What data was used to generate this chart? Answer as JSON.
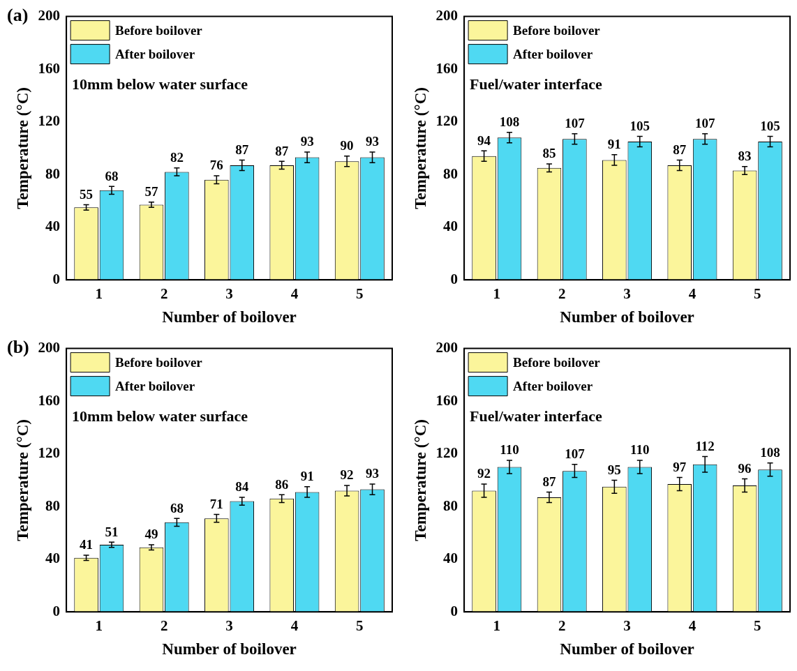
{
  "chart_data": [
    {
      "type": "bar",
      "title": "(a)",
      "xlabel": "Number of boilover",
      "ylabel": "Temperature (°C)",
      "annotations": [
        "10mm below water surface"
      ],
      "categories": [
        "1",
        "2",
        "3",
        "4",
        "5"
      ],
      "series": [
        {
          "name": "Before boilover",
          "color": "#fbf59b",
          "values": [
            55,
            57,
            76,
            87,
            90
          ],
          "errors": [
            2,
            2,
            3,
            3,
            4
          ]
        },
        {
          "name": "After boilover",
          "color": "#4fd9f2",
          "values": [
            68,
            82,
            87,
            93,
            93
          ],
          "errors": [
            3,
            3,
            4,
            4,
            4
          ]
        }
      ],
      "ylim": [
        0,
        200
      ],
      "yticks": [
        0,
        40,
        80,
        120,
        160,
        200
      ],
      "grid": false,
      "legend": "top left",
      "data_labels": true
    },
    {
      "type": "bar",
      "xlabel": "Number of boilover",
      "ylabel": "Temperature (°C)",
      "annotations": [
        "Fuel/water interface"
      ],
      "categories": [
        "1",
        "2",
        "3",
        "4",
        "5"
      ],
      "series": [
        {
          "name": "Before boilover",
          "color": "#fbf59b",
          "values": [
            94,
            85,
            91,
            87,
            83
          ],
          "errors": [
            4,
            3,
            4,
            4,
            3
          ]
        },
        {
          "name": "After boilover",
          "color": "#4fd9f2",
          "values": [
            108,
            107,
            105,
            107,
            105
          ],
          "errors": [
            4,
            4,
            4,
            4,
            4
          ]
        }
      ],
      "ylim": [
        0,
        200
      ],
      "yticks": [
        0,
        40,
        80,
        120,
        160,
        200
      ],
      "grid": false,
      "legend": "top left",
      "data_labels": true
    },
    {
      "type": "bar",
      "title": "(b)",
      "xlabel": "Number of boilover",
      "ylabel": "Temperature (°C)",
      "annotations": [
        "10mm below water surface"
      ],
      "categories": [
        "1",
        "2",
        "3",
        "4",
        "5"
      ],
      "series": [
        {
          "name": "Before boilover",
          "color": "#fbf59b",
          "values": [
            41,
            49,
            71,
            86,
            92
          ],
          "errors": [
            2,
            2,
            3,
            3,
            4
          ]
        },
        {
          "name": "After boilover",
          "color": "#4fd9f2",
          "values": [
            51,
            68,
            84,
            91,
            93
          ],
          "errors": [
            2,
            3,
            3,
            4,
            4
          ]
        }
      ],
      "ylim": [
        0,
        200
      ],
      "yticks": [
        0,
        40,
        80,
        120,
        160,
        200
      ],
      "grid": false,
      "legend": "top left",
      "data_labels": true
    },
    {
      "type": "bar",
      "xlabel": "Number of boilover",
      "ylabel": "Temperature (°C)",
      "annotations": [
        "Fuel/water interface"
      ],
      "categories": [
        "1",
        "2",
        "3",
        "4",
        "5"
      ],
      "series": [
        {
          "name": "Before boilover",
          "color": "#fbf59b",
          "values": [
            92,
            87,
            95,
            97,
            96
          ],
          "errors": [
            5,
            4,
            5,
            5,
            5
          ]
        },
        {
          "name": "After boilover",
          "color": "#4fd9f2",
          "values": [
            110,
            107,
            110,
            112,
            108
          ],
          "errors": [
            5,
            5,
            5,
            6,
            5
          ]
        }
      ],
      "ylim": [
        0,
        200
      ],
      "yticks": [
        0,
        40,
        80,
        120,
        160,
        200
      ],
      "grid": false,
      "legend": "top left",
      "data_labels": true
    }
  ]
}
